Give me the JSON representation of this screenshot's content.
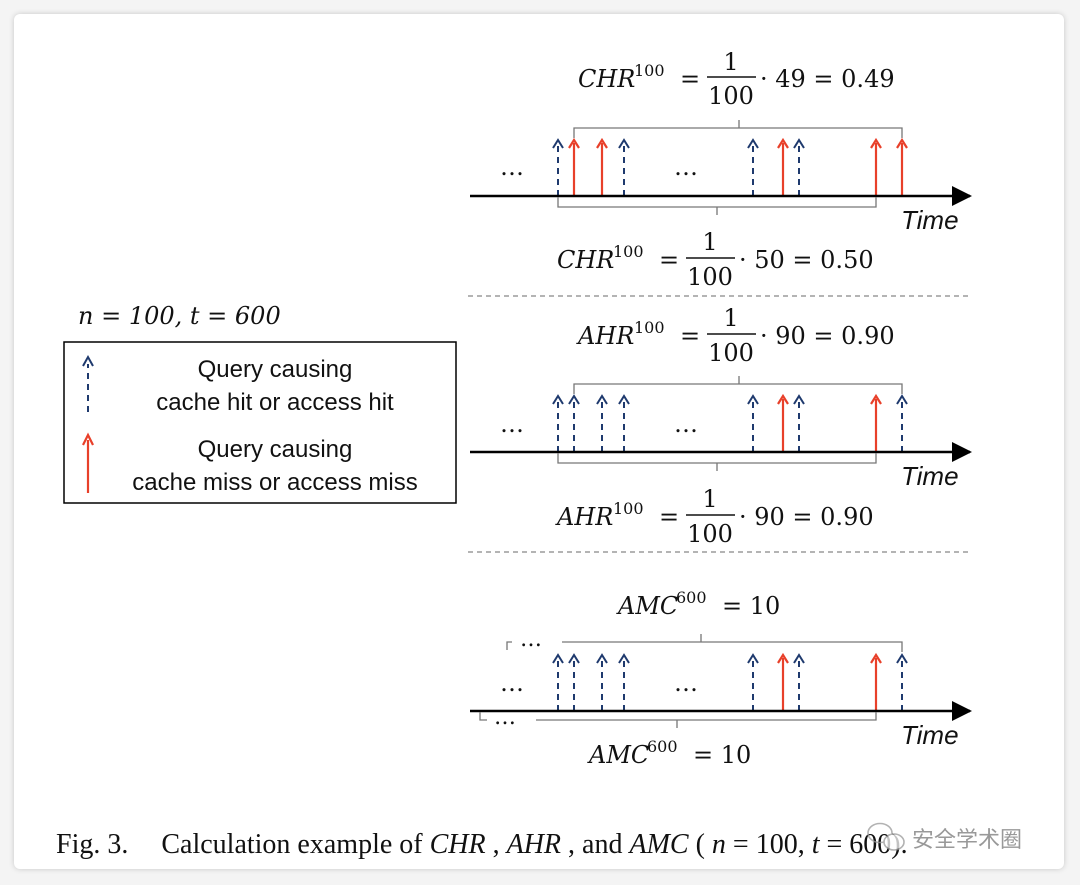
{
  "params_label": "n = 100, t = 600",
  "legend": {
    "hit_line1": "Query causing",
    "hit_line2": "cache hit or access hit",
    "miss_line1": "Query causing",
    "miss_line2": "cache miss or access miss"
  },
  "colors": {
    "hit": "#1f3a6e",
    "miss": "#e8402a",
    "axis": "#000000"
  },
  "time_label": "Time",
  "ellipsis": "…",
  "panels": [
    {
      "id": "chr",
      "top_formula": {
        "lhs": "CHR",
        "sup": "100",
        "num": "1",
        "den": "100",
        "rest": "· 49 = 0.49"
      },
      "bottom_formula": {
        "lhs": "CHR",
        "sup": "100",
        "num": "1",
        "den": "100",
        "rest": "· 50 = 0.50"
      },
      "arrows": [
        "hit",
        "miss",
        "miss",
        "hit",
        "hit",
        "miss",
        "hit",
        "miss",
        "miss"
      ]
    },
    {
      "id": "ahr",
      "top_formula": {
        "lhs": "AHR",
        "sup": "100",
        "num": "1",
        "den": "100",
        "rest": "· 90 = 0.90"
      },
      "bottom_formula": {
        "lhs": "AHR",
        "sup": "100",
        "num": "1",
        "den": "100",
        "rest": "· 90 = 0.90"
      },
      "arrows": [
        "hit",
        "hit",
        "hit",
        "hit",
        "hit",
        "miss",
        "hit",
        "miss",
        "hit"
      ]
    },
    {
      "id": "amc",
      "top_formula": {
        "lhs": "AMC",
        "sup": "600",
        "rest": "= 10"
      },
      "bottom_formula": {
        "lhs": "AMC",
        "sup": "600",
        "rest": "= 10"
      },
      "arrows": [
        "hit",
        "hit",
        "hit",
        "hit",
        "hit",
        "miss",
        "hit",
        "miss",
        "hit"
      ]
    }
  ],
  "caption": {
    "fig": "Fig. 3.",
    "text_a": "Calculation example of ",
    "chr": "CHR",
    "sep1": ", ",
    "ahr": "AHR",
    "sep2": ", and ",
    "amc": "AMC",
    "paren": " (",
    "n": "n",
    "mid": " = 100, ",
    "t": "t",
    "end": " = 600)."
  },
  "watermark": "安全学术圈"
}
